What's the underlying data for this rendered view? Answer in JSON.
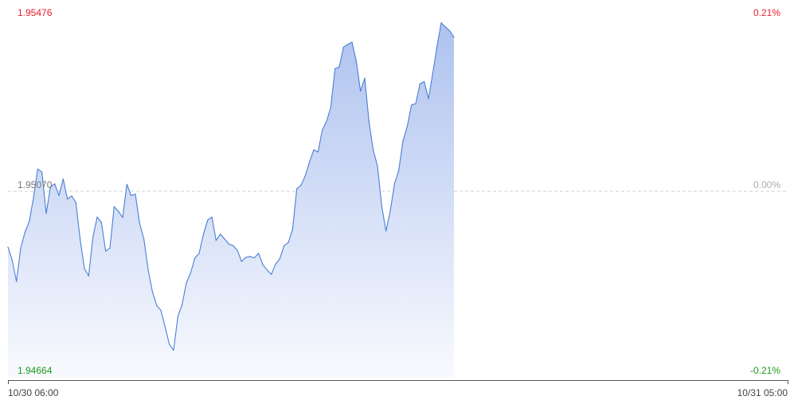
{
  "chart_data": {
    "type": "area",
    "x_start_label": "10/30 06:00",
    "x_end_label": "10/31 05:00",
    "y_axis": {
      "max": 1.95476,
      "ref": 1.9507,
      "min": 1.94664,
      "max_label": "1.95476",
      "ref_label": "1.95070",
      "min_label": "1.94664"
    },
    "pct_axis": {
      "max_label": "0.21%",
      "ref_label": "0.00%",
      "min_label": "-0.21%"
    },
    "series": [
      {
        "values": [
          1.94957,
          1.94928,
          1.9488,
          1.94955,
          1.9499,
          1.95014,
          1.95066,
          1.95131,
          1.95124,
          1.95032,
          1.95091,
          1.95098,
          1.95072,
          1.95109,
          1.95064,
          1.95071,
          1.95056,
          1.94974,
          1.94909,
          1.94893,
          1.94979,
          1.95024,
          1.95012,
          1.94948,
          1.94955,
          1.95047,
          1.95037,
          1.95023,
          1.95097,
          1.95072,
          1.95075,
          1.9501,
          1.94975,
          1.94907,
          1.94858,
          1.94827,
          1.94816,
          1.94779,
          1.9474,
          1.94727,
          1.94802,
          1.94829,
          1.94877,
          1.94899,
          1.94933,
          1.94943,
          1.94985,
          1.95017,
          1.95024,
          1.94972,
          1.94986,
          1.94975,
          1.94964,
          1.9496,
          1.9495,
          1.94925,
          1.94934,
          1.94936,
          1.94933,
          1.94943,
          1.94918,
          1.94906,
          1.94896,
          1.94919,
          1.94931,
          1.9496,
          1.94967,
          1.94996,
          1.95087,
          1.95095,
          1.95116,
          1.95147,
          1.95174,
          1.95169,
          1.95218,
          1.95237,
          1.95269,
          1.95355,
          1.95359,
          1.95403,
          1.95409,
          1.95414,
          1.95372,
          1.95305,
          1.95334,
          1.95237,
          1.95173,
          1.95138,
          1.95048,
          1.94993,
          1.95037,
          1.95098,
          1.95128,
          1.95194,
          1.95226,
          1.95274,
          1.95277,
          1.95321,
          1.95326,
          1.95288,
          1.95344,
          1.95404,
          1.95457,
          1.95448,
          1.95439,
          1.95425
        ]
      }
    ]
  }
}
